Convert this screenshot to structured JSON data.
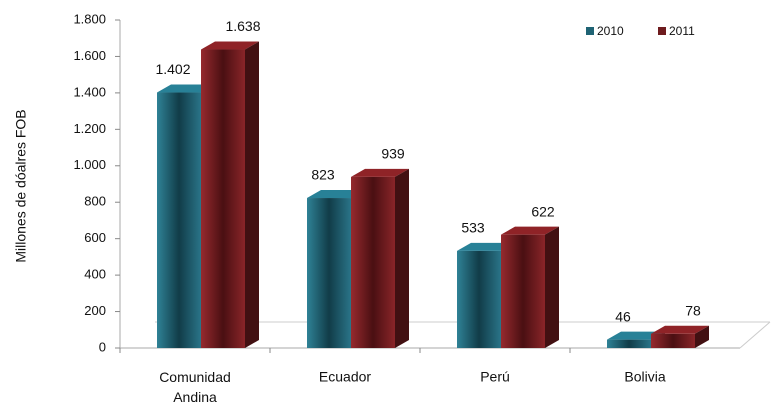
{
  "chart_data": {
    "type": "bar3d",
    "y_axis_label": "Millones de dóalres FOB",
    "categories": [
      "Comunidad Andina",
      "Ecuador",
      "Perú",
      "Bolivia"
    ],
    "series": [
      {
        "name": "2010",
        "color": "#1f6374",
        "values": [
          1402,
          823,
          533,
          46
        ],
        "value_labels": [
          "1.402",
          "823",
          "533",
          "46"
        ]
      },
      {
        "name": "2011",
        "color": "#6e1b1e",
        "values": [
          1638,
          939,
          622,
          78
        ],
        "value_labels": [
          "1.638",
          "939",
          "622",
          "78"
        ]
      }
    ],
    "ylim": [
      0,
      1800
    ],
    "yticks": [
      0,
      200,
      400,
      600,
      800,
      {
        "value": 1000,
        "label": "1.000"
      },
      {
        "value": 1200,
        "label": "1.200"
      },
      {
        "value": 1400,
        "label": "1.400"
      },
      {
        "value": 1600,
        "label": "1.600"
      },
      {
        "value": 1800,
        "label": "1.800"
      }
    ],
    "legend": "top-right"
  }
}
